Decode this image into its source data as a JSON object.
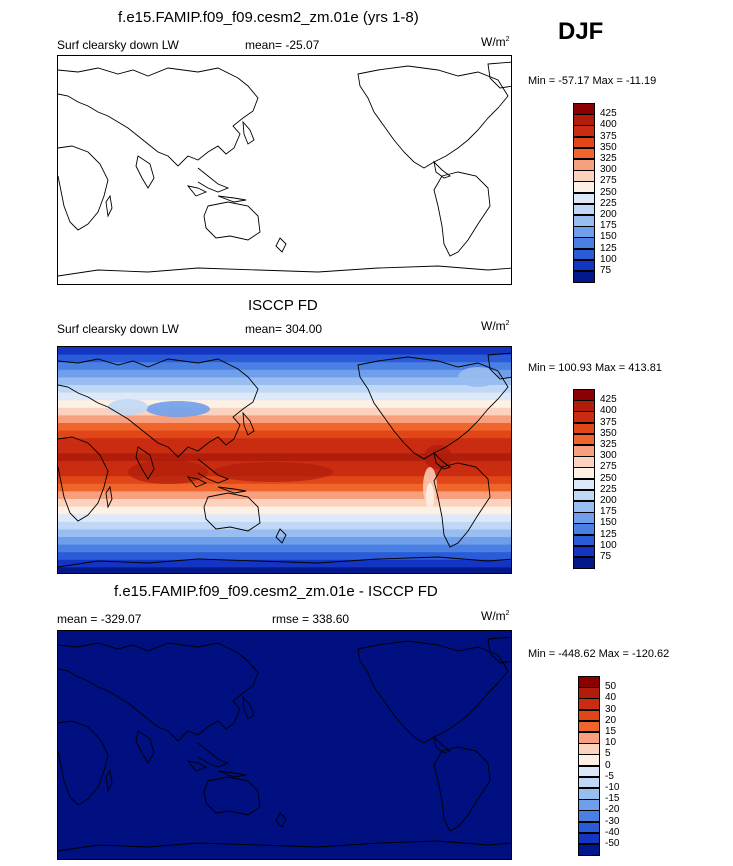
{
  "season": "DJF",
  "panels": [
    {
      "title": "f.e15.FAMIP.f09_f09.cesm2_zm.01e (yrs 1-8)",
      "left_label": "Surf clearsky down LW",
      "center_label": "mean= -25.07",
      "units_base": "W/m",
      "units_sup": "2",
      "minmax": "Min = -57.17 Max = -11.19",
      "fill": "white",
      "colorbar_labels": [
        "425",
        "400",
        "375",
        "350",
        "325",
        "300",
        "275",
        "250",
        "225",
        "200",
        "175",
        "150",
        "125",
        "100",
        "75"
      ]
    },
    {
      "title": "ISCCP FD",
      "left_label": "Surf clearsky down LW",
      "center_label": "mean= 304.00",
      "units_base": "W/m",
      "units_sup": "2",
      "minmax": "Min = 100.93 Max = 413.81",
      "fill": "zonal",
      "colorbar_labels": [
        "425",
        "400",
        "375",
        "350",
        "325",
        "300",
        "275",
        "250",
        "225",
        "200",
        "175",
        "150",
        "125",
        "100",
        "75"
      ]
    },
    {
      "title": "f.e15.FAMIP.f09_f09.cesm2_zm.01e - ISCCP FD",
      "left_label": "mean = -329.07",
      "center_label": "rmse = 338.60",
      "units_base": "W/m",
      "units_sup": "2",
      "minmax": "Min = -448.62 Max = -120.62",
      "fill": "navy",
      "colorbar_labels": [
        "50",
        "40",
        "30",
        "20",
        "15",
        "10",
        "5",
        "0",
        "-5",
        "-10",
        "-15",
        "-20",
        "-30",
        "-40",
        "-50"
      ]
    }
  ],
  "colors": {
    "ramp": [
      "#8b0000",
      "#b01d0b",
      "#c92c10",
      "#e04618",
      "#f0652c",
      "#f8a07e",
      "#fbd2bd",
      "#fdf0e4",
      "#dde9f8",
      "#c0d8f5",
      "#98bdf0",
      "#6f9fea",
      "#4a80e4",
      "#2a5bd8",
      "#1434c4",
      "#02188a"
    ],
    "ocean_navy": "#001080"
  }
}
